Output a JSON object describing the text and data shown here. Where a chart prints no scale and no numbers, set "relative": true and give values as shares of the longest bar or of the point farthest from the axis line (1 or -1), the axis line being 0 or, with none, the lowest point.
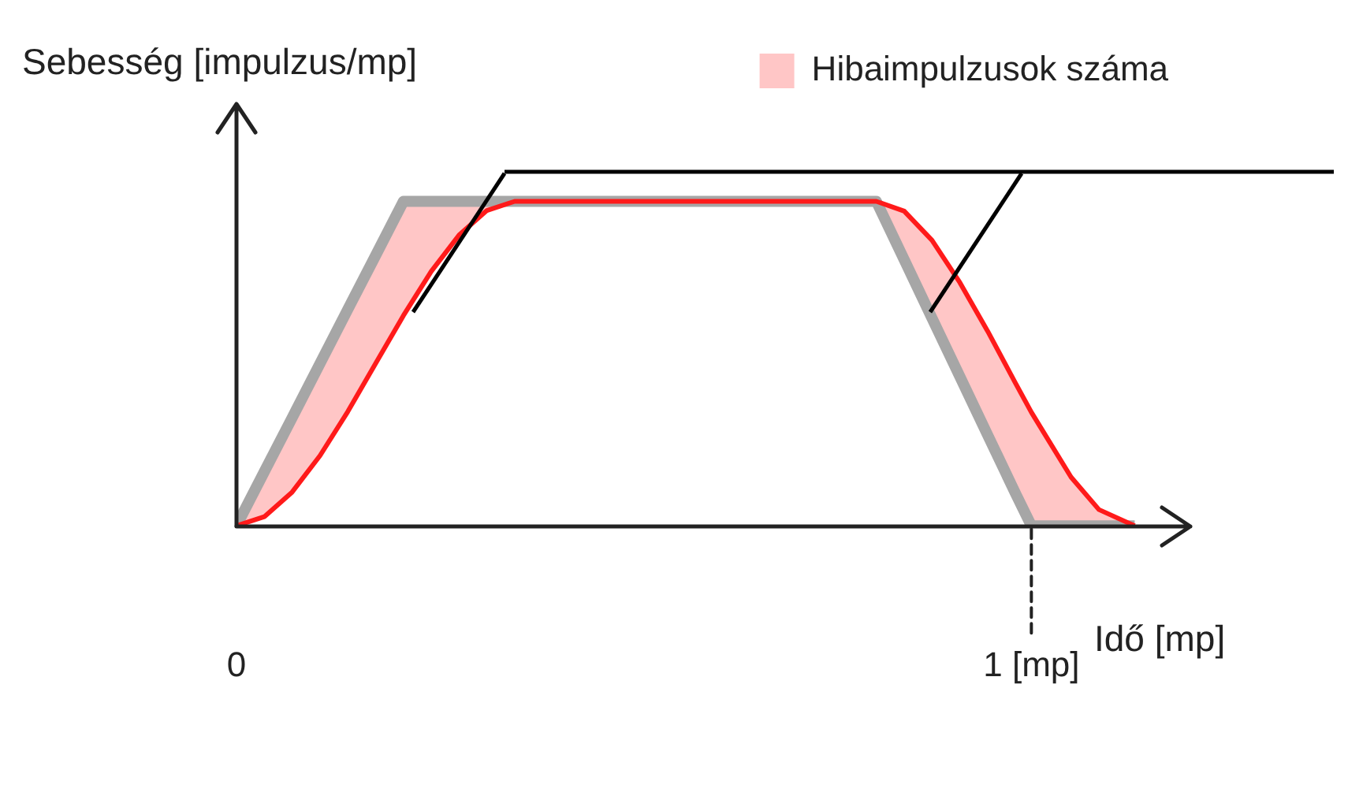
{
  "chart_data": {
    "type": "line",
    "relative": true,
    "xlabel": "Idő [mp]",
    "ylabel": "Sebesség [impulzus/mp]",
    "xlim": [
      0,
      1.2
    ],
    "xticks": [
      0,
      {
        "value": 1,
        "label": "1 [mp]"
      }
    ],
    "tick_labels": "x",
    "grid": false,
    "legend": "top right",
    "marker": "none",
    "x": [
      0,
      0.035,
      0.07,
      0.105,
      0.14,
      0.175,
      0.21,
      0.245,
      0.28,
      0.315,
      0.35,
      0.5,
      0.65,
      0.805,
      0.84,
      0.875,
      0.91,
      0.945,
      0.98,
      1.0,
      1.015,
      1.05,
      1.085,
      1.13
    ],
    "series": [
      {
        "color": "#a6a6a6",
        "values": [
          0,
          0.167,
          0.333,
          0.5,
          0.667,
          0.833,
          1,
          1,
          1,
          1,
          1,
          1,
          1,
          1,
          0.82,
          0.64,
          0.46,
          0.28,
          0.1,
          0,
          0,
          0,
          0,
          0
        ]
      },
      {
        "name": "Hibaimpulzusok száma",
        "color": "#ff1a1a",
        "values": [
          0,
          0.028,
          0.104,
          0.216,
          0.352,
          0.5,
          0.648,
          0.784,
          0.896,
          0.972,
          1,
          1,
          1,
          1,
          0.97,
          0.88,
          0.75,
          0.6,
          0.44,
          0.35,
          0.29,
          0.15,
          0.05,
          0
        ],
        "lower": [
          0,
          0.028,
          0.104,
          0.216,
          0.352,
          0.5,
          0.648,
          0.784,
          0.896,
          0.972,
          1,
          1,
          1,
          1,
          0.82,
          0.64,
          0.46,
          0.28,
          0.1,
          0,
          0,
          0,
          0,
          0
        ],
        "upper": [
          0,
          0.167,
          0.333,
          0.5,
          0.667,
          0.833,
          1,
          1,
          1,
          1,
          1,
          1,
          1,
          1,
          0.97,
          0.88,
          0.75,
          0.6,
          0.44,
          0.35,
          0.29,
          0.15,
          0.05,
          0
        ]
      }
    ]
  }
}
